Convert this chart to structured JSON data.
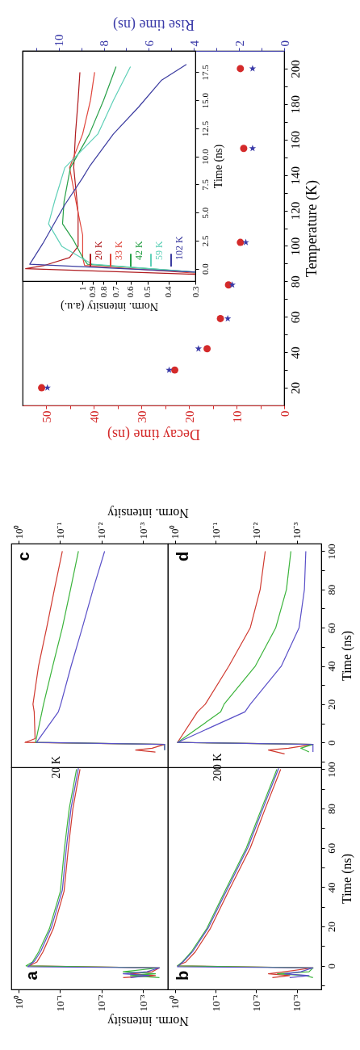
{
  "chart_data": [
    {
      "type": "line",
      "title": "a",
      "xlabel": "Norm. intensity",
      "xlim": [
        1.5,
        0.00025
      ],
      "ylim": [
        -12,
        101
      ],
      "log": "x",
      "tick_labels": "x",
      "yticks": [
        {
          "value": -10,
          "label": null
        },
        {
          "value": 0,
          "label": null
        },
        {
          "value": 10,
          "label": null
        },
        {
          "value": 20,
          "label": null
        },
        {
          "value": 30,
          "label": null
        },
        {
          "value": 40,
          "label": null
        },
        {
          "value": 50,
          "label": null
        },
        {
          "value": 60,
          "label": null
        },
        {
          "value": 70,
          "label": null
        },
        {
          "value": 80,
          "label": null
        },
        {
          "value": 90,
          "label": null
        },
        {
          "value": 100,
          "label": null
        }
      ],
      "xticks": [
        {
          "value": 1,
          "label": "10⁰"
        },
        {
          "value": 0.1,
          "label": "10⁻¹"
        },
        {
          "value": 0.01,
          "label": "10⁻²"
        },
        {
          "value": 0.001,
          "label": "10⁻³"
        }
      ],
      "series": [
        {
          "color": "#d03a30",
          "x": [
            0.003,
            0.0005,
            0.002,
            0.0006,
            0.0004,
            0.55,
            0.36,
            0.26,
            0.145,
            0.08,
            0.063,
            0.049,
            0.033
          ],
          "values": [
            -6,
            -5,
            -4,
            -3,
            -1,
            0,
            2,
            7,
            19,
            38,
            60,
            80,
            100
          ]
        },
        {
          "color": "#3cb43c",
          "x": [
            0.0004,
            0.002,
            0.0005,
            0.003,
            0.0004,
            0.66,
            0.46,
            0.33,
            0.18,
            0.098,
            0.078,
            0.06,
            0.04
          ],
          "values": [
            -6,
            -5,
            -4,
            -3,
            -1,
            0,
            2,
            7,
            19,
            38,
            60,
            80,
            100
          ]
        },
        {
          "color": "#5a50c8",
          "x": [
            0.002,
            0.0007,
            0.003,
            0.0008,
            0.0004,
            0.6,
            0.41,
            0.29,
            0.162,
            0.088,
            0.07,
            0.054,
            0.036
          ],
          "values": [
            -6,
            -5,
            -4,
            -3,
            -1,
            -0.5,
            2.5,
            7.5,
            19.5,
            38.5,
            60.5,
            80.5,
            100.5
          ]
        }
      ]
    },
    {
      "type": "line",
      "title": "b",
      "ylabel": "Time (ns)",
      "xlim": [
        1.5,
        0.00025
      ],
      "ylim": [
        -12,
        101
      ],
      "log": "x",
      "yticks": [
        {
          "value": -10,
          "label": null
        },
        0,
        {
          "value": 10,
          "label": null
        },
        20,
        {
          "value": 30,
          "label": null
        },
        40,
        {
          "value": 50,
          "label": null
        },
        60,
        {
          "value": 70,
          "label": null
        },
        80,
        {
          "value": 90,
          "label": null
        },
        100
      ],
      "xticks": [
        {
          "value": 1,
          "label": "10⁰"
        },
        {
          "value": 0.1,
          "label": "10⁻¹"
        },
        {
          "value": 0.01,
          "label": "10⁻²"
        },
        {
          "value": 0.001,
          "label": "10⁻³"
        }
      ],
      "series": [
        {
          "color": "#d03a30",
          "x": [
            0.004,
            0.0015,
            0.005,
            0.002,
            0.0004,
            0.87,
            0.54,
            0.32,
            0.135,
            0.048,
            0.014,
            0.006,
            0.0025
          ],
          "values": [
            -6,
            -5,
            -4,
            -3,
            -1,
            0,
            2,
            7,
            19,
            38,
            60,
            80,
            100
          ]
        },
        {
          "color": "#3cb43c",
          "x": [
            0.0004,
            0.0006,
            0.003,
            0.0005,
            0.0004,
            0.87,
            0.66,
            0.4,
            0.165,
            0.059,
            0.0175,
            0.0074,
            0.0031
          ],
          "values": [
            -6,
            -5,
            -4,
            -3,
            -1,
            0,
            2,
            7,
            19,
            38,
            60,
            80,
            100
          ]
        },
        {
          "color": "#5a50c8",
          "x": [
            0.0015,
            0.0005,
            0.002,
            0.0008,
            0.0004,
            0.87,
            0.6,
            0.36,
            0.15,
            0.053,
            0.0158,
            0.0067,
            0.0028
          ],
          "values": [
            -6,
            -5,
            -4,
            -3,
            -1,
            -0.5,
            2.5,
            7.5,
            19.5,
            38.5,
            60.5,
            80.5,
            100.5
          ]
        }
      ]
    },
    {
      "type": "line",
      "title": "c",
      "xlabel": "Norm. intensity",
      "annotations": [
        "20 K"
      ],
      "xlim": [
        1.5,
        0.00025
      ],
      "ylim": [
        -13,
        104
      ],
      "log": "x",
      "tick_labels": "x",
      "yticks": [
        {
          "value": -10,
          "label": null
        },
        {
          "value": 0,
          "label": null
        },
        {
          "value": 10,
          "label": null
        },
        {
          "value": 20,
          "label": null
        },
        {
          "value": 30,
          "label": null
        },
        {
          "value": 40,
          "label": null
        },
        {
          "value": 50,
          "label": null
        },
        {
          "value": 60,
          "label": null
        },
        {
          "value": 70,
          "label": null
        },
        {
          "value": 80,
          "label": null
        },
        {
          "value": 90,
          "label": null
        },
        {
          "value": 100,
          "label": null
        }
      ],
      "xticks": [
        {
          "value": 1,
          "label": "10⁰"
        },
        {
          "value": 0.1,
          "label": "10⁻¹"
        },
        {
          "value": 0.01,
          "label": "10⁻²"
        },
        {
          "value": 0.001,
          "label": "10⁻³"
        }
      ],
      "series": [
        {
          "color": "#d03a30",
          "x": [
            0.0005,
            0.0015,
            0.0006,
            0.0003,
            0.7,
            0.4,
            0.42,
            0.45,
            0.33,
            0.21,
            0.137,
            0.088
          ],
          "values": [
            -5,
            -4,
            -3,
            -1,
            0,
            2,
            16,
            20,
            40,
            60,
            80,
            100
          ]
        },
        {
          "color": "#3cb43c",
          "x": [
            0.0003,
            0.0003,
            0.39,
            0.25,
            0.15,
            0.088,
            0.056,
            0.036
          ],
          "values": [
            -4,
            -1,
            0,
            20,
            40,
            60,
            80,
            100
          ]
        },
        {
          "color": "#5a50c8",
          "x": [
            0.0003,
            0.0003,
            0.37,
            0.11,
            0.096,
            0.054,
            0.029,
            0.016,
            0.0084
          ],
          "values": [
            -4,
            -1,
            0,
            16,
            20,
            40,
            60,
            80,
            100
          ]
        }
      ]
    },
    {
      "type": "line",
      "title": "d",
      "ylabel": "Time (ns)",
      "annotations": [
        "200 K"
      ],
      "xlim": [
        1.5,
        0.00025
      ],
      "ylim": [
        -13,
        104
      ],
      "log": "x",
      "yticks": [
        {
          "value": -10,
          "label": null
        },
        0,
        {
          "value": 10,
          "label": null
        },
        20,
        {
          "value": 30,
          "label": null
        },
        40,
        {
          "value": 50,
          "label": null
        },
        60,
        {
          "value": 70,
          "label": null
        },
        80,
        {
          "value": 90,
          "label": null
        },
        100
      ],
      "xticks": [
        {
          "value": 1,
          "label": "10⁰"
        },
        {
          "value": 0.1,
          "label": "10⁻¹"
        },
        {
          "value": 0.01,
          "label": "10⁻²"
        },
        {
          "value": 0.001,
          "label": "10⁻³"
        }
      ],
      "series": [
        {
          "color": "#d03a30",
          "x": [
            0.002,
            0.005,
            0.0016,
            0.0004,
            0.87,
            0.28,
            0.18,
            0.047,
            0.014,
            0.008,
            0.006
          ],
          "values": [
            -6,
            -4,
            -3,
            -1,
            0,
            16,
            20,
            40,
            60,
            80,
            100
          ]
        },
        {
          "color": "#3cb43c",
          "x": [
            0.0005,
            0.0008,
            0.0004,
            0.87,
            0.075,
            0.062,
            0.0105,
            0.0033,
            0.0018,
            0.0014
          ],
          "values": [
            -5,
            -3,
            -1,
            0,
            16,
            20,
            40,
            60,
            80,
            100
          ]
        },
        {
          "color": "#5a50c8",
          "x": [
            0.0004,
            0.0004,
            0.87,
            0.019,
            0.014,
            0.0024,
            0.00088,
            0.00065,
            0.0006
          ],
          "values": [
            -5,
            -1,
            0,
            16,
            20,
            40,
            60,
            80,
            100
          ]
        }
      ]
    },
    {
      "type": "scatter",
      "xlabel": "Decay time (ns)",
      "x2label": "Rise time (ns)",
      "ylabel": "Temperature (K)",
      "ylim": [
        10,
        210
      ],
      "yticks": [
        20,
        {
          "value": 30,
          "label": null
        },
        40,
        {
          "value": 50,
          "label": null
        },
        60,
        {
          "value": 70,
          "label": null
        },
        80,
        {
          "value": 90,
          "label": null
        },
        100,
        {
          "value": 110,
          "label": null
        },
        120,
        {
          "value": 130,
          "label": null
        },
        140,
        {
          "value": 150,
          "label": null
        },
        160,
        {
          "value": 170,
          "label": null
        },
        180,
        {
          "value": 190,
          "label": null
        },
        200
      ],
      "xlim": [
        55,
        0
      ],
      "xticks": [
        0,
        {
          "value": 5,
          "label": null
        },
        10,
        {
          "value": 15,
          "label": null
        },
        20,
        {
          "value": 25,
          "label": null
        },
        30,
        {
          "value": 35,
          "label": null
        },
        40,
        {
          "value": 45,
          "label": null
        },
        50
      ],
      "x2lim": [
        11.6,
        0
      ],
      "x2ticks": [
        0,
        {
          "value": 1,
          "label": null
        },
        2,
        {
          "value": 3,
          "label": null
        },
        4,
        {
          "value": 5,
          "label": null
        },
        6,
        {
          "value": 7,
          "label": null
        },
        8,
        {
          "value": 9,
          "label": null
        },
        10,
        {
          "value": 11,
          "label": null
        }
      ],
      "series": [
        {
          "color": "#d42a2a",
          "marker": "circle",
          "x": [
            51,
            23,
            16.2,
            13.4,
            11.7,
            9.2,
            8.5,
            9.2
          ],
          "values": [
            20,
            30,
            42,
            59,
            78,
            102,
            155,
            200
          ]
        },
        {
          "color": "#3a3aa8",
          "marker": "star",
          "axis": "x2",
          "x": [
            10.5,
            5.1,
            3.8,
            2.5,
            2.3,
            1.7,
            1.4,
            1.4
          ],
          "values": [
            20,
            30,
            42,
            59,
            78,
            102,
            155,
            200
          ]
        }
      ]
    },
    {
      "type": "line",
      "xlabel": "Norm. intensity (a.u.)",
      "ylabel": "Time (ns)",
      "xlim": [
        1.9,
        0.3
      ],
      "ylim": [
        -1.1,
        19.4
      ],
      "log": "x",
      "legend": "bottom right",
      "yticks": [
        {
          "value": 0,
          "label": "0.0"
        },
        2.5,
        {
          "value": 5,
          "label": "5.0"
        },
        7.5,
        {
          "value": 10,
          "label": "10.0"
        },
        12.5,
        {
          "value": 15,
          "label": "15.0"
        },
        17.5
      ],
      "xticks": [
        1,
        0.9,
        0.8,
        0.7,
        0.6,
        0.5,
        0.4,
        0.3
      ],
      "series": [
        {
          "name": "20 K",
          "color": "#b01c20",
          "x": [
            0.3,
            1.84,
            1.5,
            1.15,
            1.05,
            1.05,
            1.1,
            1.08,
            1.05,
            1.03
          ],
          "values": [
            -0.5,
            0,
            0.3,
            1,
            2,
            5,
            9,
            12,
            15,
            17.5
          ]
        },
        {
          "name": "33 K",
          "color": "#e0463c",
          "x": [
            0.3,
            0.98,
            1.0,
            1.0,
            1.05,
            1.15,
            1.0,
            0.92,
            0.88
          ],
          "values": [
            -0.4,
            0.3,
            1,
            3,
            5,
            9,
            12,
            15,
            17.5
          ]
        },
        {
          "name": "42 K",
          "color": "#28a048",
          "x": [
            0.3,
            0.95,
            1.0,
            1.1,
            1.24,
            1.22,
            1.14,
            0.93,
            0.8,
            0.7
          ],
          "values": [
            -0.3,
            0.4,
            1,
            2.5,
            4,
            6,
            9,
            12,
            15,
            18
          ]
        },
        {
          "name": "59 K",
          "color": "#5fd0b8",
          "x": [
            0.3,
            0.9,
            1.25,
            1.44,
            1.35,
            1.21,
            0.85,
            0.72,
            0.6
          ],
          "values": [
            -0.3,
            0.4,
            2,
            4,
            6,
            9,
            12,
            15,
            18
          ]
        },
        {
          "name": "102 K",
          "color": "#3c3ca0",
          "x": [
            0.3,
            1.76,
            1.53,
            1.21,
            1.0,
            0.93,
            0.72,
            0.55,
            0.43,
            0.33
          ],
          "values": [
            -0.3,
            0.4,
            2.25,
            5.7,
            8.1,
            9.1,
            12,
            14.4,
            16.8,
            18.2
          ]
        }
      ]
    }
  ]
}
